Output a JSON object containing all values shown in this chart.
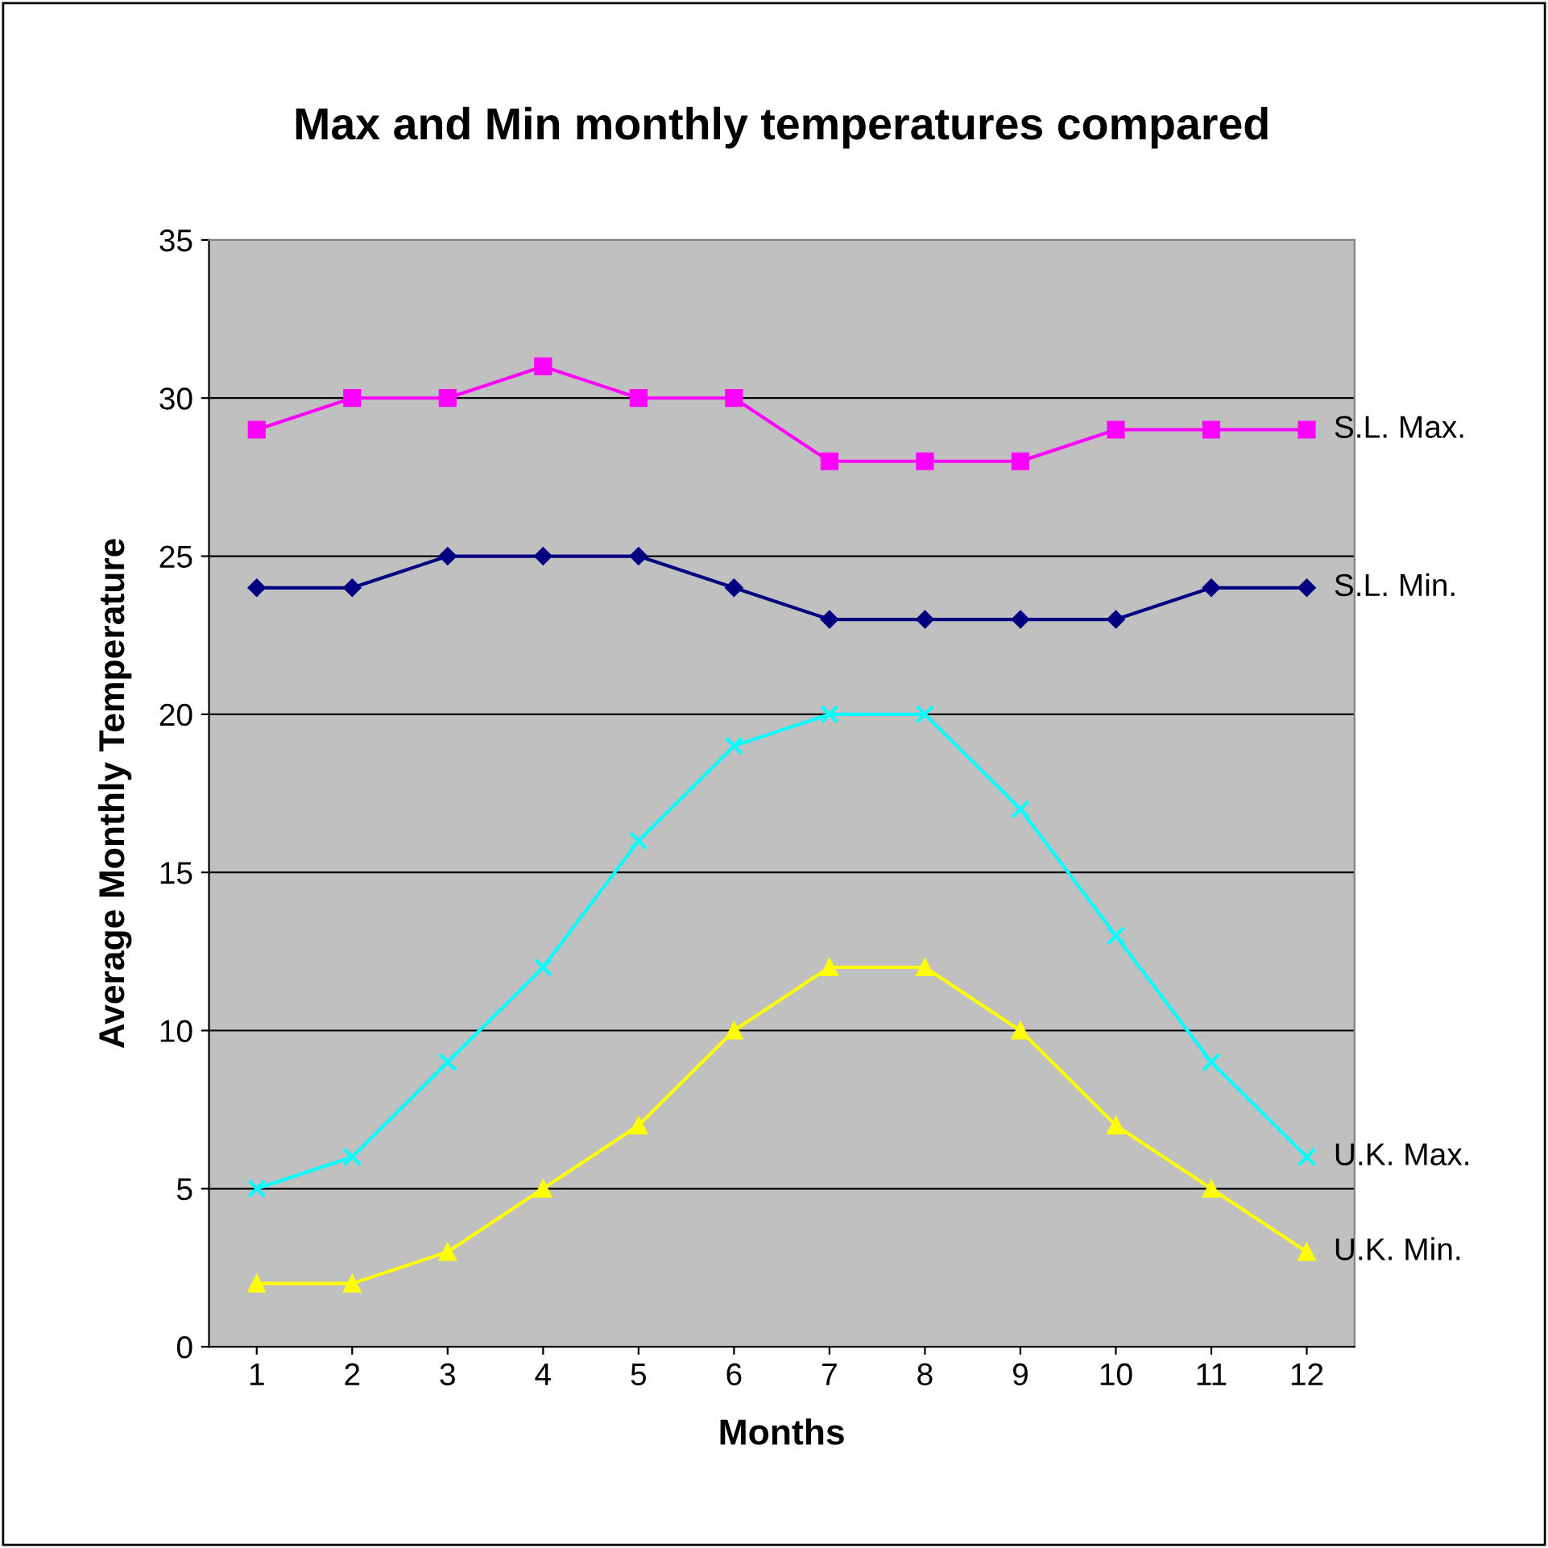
{
  "chart_data": {
    "type": "line",
    "title": "Max and Min monthly temperatures compared",
    "xlabel": "Months",
    "ylabel": "Average Monthly Temperature",
    "categories": [
      "1",
      "2",
      "3",
      "4",
      "5",
      "6",
      "7",
      "8",
      "9",
      "10",
      "11",
      "12"
    ],
    "series": [
      {
        "name": "S.L. Max.",
        "color": "#ff00ff",
        "marker": "square",
        "values": [
          29,
          30,
          30,
          31,
          30,
          30,
          28,
          28,
          28,
          29,
          29,
          29
        ]
      },
      {
        "name": "S.L. Min.",
        "color": "#000080",
        "marker": "diamond",
        "values": [
          24,
          24,
          25,
          25,
          25,
          24,
          23,
          23,
          23,
          23,
          24,
          24
        ]
      },
      {
        "name": "U.K. Max.",
        "color": "#00ffff",
        "marker": "cross",
        "values": [
          5,
          6,
          9,
          12,
          16,
          19,
          20,
          20,
          17,
          13,
          9,
          6
        ]
      },
      {
        "name": "U.K. Min.",
        "color": "#ffff00",
        "marker": "triangle",
        "values": [
          2,
          2,
          3,
          5,
          7,
          10,
          12,
          12,
          10,
          7,
          5,
          3
        ]
      }
    ],
    "ylim": [
      0,
      35
    ],
    "yticks": [
      0,
      5,
      10,
      15,
      20,
      25,
      30,
      35
    ],
    "grid": "y",
    "legend": false
  }
}
